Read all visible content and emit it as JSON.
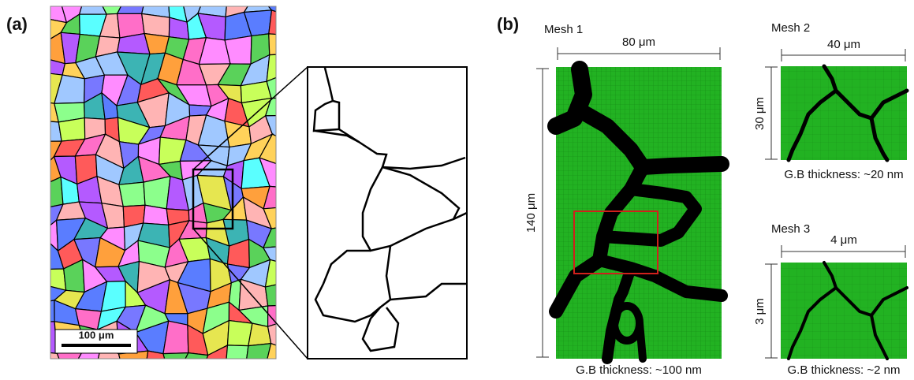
{
  "panels": {
    "a": {
      "label": "(a)",
      "scale_bar": "100 μm"
    },
    "b": {
      "label": "(b)",
      "meshes": [
        {
          "title": "Mesh 1",
          "width": "80 μm",
          "height": "140 μm",
          "gb_thickness": "G.B thickness: ~100 nm"
        },
        {
          "title": "Mesh 2",
          "width": "40 μm",
          "height": "30 μm",
          "gb_thickness": "G.B thickness: ~20 nm"
        },
        {
          "title": "Mesh 3",
          "width": "4 μm",
          "height": "3 μm",
          "gb_thickness": "G.B thickness: ~2 nm"
        }
      ]
    }
  }
}
